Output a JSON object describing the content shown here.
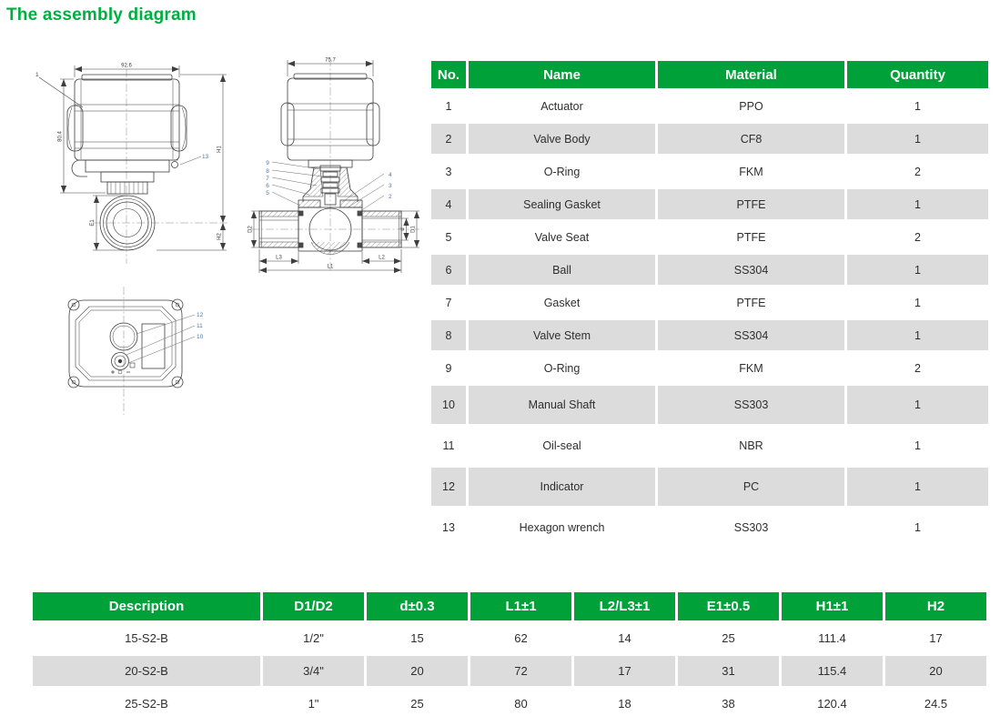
{
  "title": "The assembly diagram",
  "colors": {
    "header_green": "#00a139",
    "title_green": "#00ae41",
    "alt_row_gray": "#dcdcdc",
    "callout_blue": "#4e74ad",
    "line_gray": "#3f3f3f"
  },
  "parts_table": {
    "headers": [
      "No.",
      "Name",
      "Material",
      "Quantity"
    ],
    "rows": [
      [
        "1",
        "Actuator",
        "PPO",
        "1"
      ],
      [
        "2",
        "Valve Body",
        "CF8",
        "1"
      ],
      [
        "3",
        "O-Ring",
        "FKM",
        "2"
      ],
      [
        "4",
        "Sealing Gasket",
        "PTFE",
        "1"
      ],
      [
        "5",
        "Valve Seat",
        "PTFE",
        "2"
      ],
      [
        "6",
        "Ball",
        "SS304",
        "1"
      ],
      [
        "7",
        "Gasket",
        "PTFE",
        "1"
      ],
      [
        "8",
        "Valve Stem",
        "SS304",
        "1"
      ],
      [
        "9",
        "O-Ring",
        "FKM",
        "2"
      ],
      [
        "10",
        "Manual Shaft",
        "SS303",
        "1"
      ],
      [
        "11",
        "Oil-seal",
        "NBR",
        "1"
      ],
      [
        "12",
        "Indicator",
        "PC",
        "1"
      ],
      [
        "13",
        "Hexagon wrench",
        "SS303",
        "1"
      ]
    ]
  },
  "dimensions_table": {
    "headers": [
      "Description",
      "D1/D2",
      "d±0.3",
      "L1±1",
      "L2/L3±1",
      "E1±0.5",
      "H1±1",
      "H2"
    ],
    "rows": [
      [
        "15-S2-B",
        "1/2\"",
        "15",
        "62",
        "14",
        "25",
        "111.4",
        "17"
      ],
      [
        "20-S2-B",
        "3/4\"",
        "20",
        "72",
        "17",
        "31",
        "115.4",
        "20"
      ],
      [
        "25-S2-B",
        "1\"",
        "25",
        "80",
        "18",
        "38",
        "120.4",
        "24.5"
      ]
    ]
  },
  "drawings": {
    "front_view": {
      "width_dim": "92.6",
      "height_dim": "80.4",
      "callout_actuator": "1",
      "callout_hex_wrench": "13",
      "dim_h1": "H1",
      "dim_h2": "H2",
      "dim_e1": "E1"
    },
    "side_view": {
      "width_dim": "75.7",
      "callouts_left": [
        "9",
        "8",
        "7",
        "6",
        "5"
      ],
      "callouts_right": [
        "4",
        "3",
        "2"
      ],
      "dim_l1": "L1",
      "dim_l2": "L2",
      "dim_l3": "L3",
      "dim_d1": "D1",
      "dim_d2": "D2",
      "dim_d": "d"
    },
    "top_view": {
      "callouts": [
        "12",
        "11",
        "10"
      ]
    }
  }
}
